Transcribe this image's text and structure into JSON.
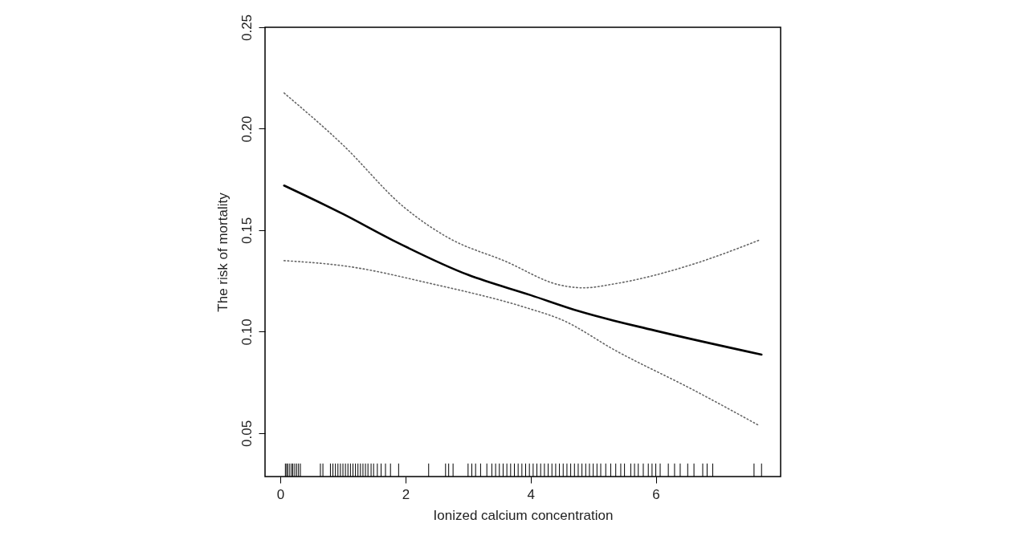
{
  "chart_data": {
    "type": "line",
    "xlabel": "Ionized calcium concentration",
    "ylabel": "The risk of mortality",
    "xlim": [
      -0.245,
      7.995
    ],
    "ylim": [
      0.0286,
      0.25
    ],
    "xticks": [
      0,
      2,
      4,
      6
    ],
    "yticks": [
      0.05,
      {
        "value": 0.1,
        "label": "0.10"
      },
      0.15,
      {
        "value": 0.2,
        "label": "0.20"
      },
      0.25
    ],
    "grid": false,
    "series": [
      {
        "color": "#000000",
        "line_style": "solid",
        "x": [
          0.06,
          1.0,
          1.8,
          3.0,
          4.0,
          4.78,
          5.98,
          7.69
        ],
        "values": [
          0.172,
          0.158,
          0.145,
          0.128,
          0.118,
          0.11,
          0.1006,
          0.0887
        ]
      },
      {
        "color": "#666666",
        "line_style": "dotted",
        "x": [
          0.06,
          1.0,
          1.97,
          2.7,
          3.58,
          4.48,
          4.84,
          5.38,
          6.58,
          7.66
        ],
        "values": [
          0.2176,
          0.192,
          0.1615,
          0.146,
          0.1349,
          0.1229,
          0.1216,
          0.1238,
          0.1331,
          0.1452
        ]
      },
      {
        "color": "#666666",
        "line_style": "dotted",
        "x": [
          0.06,
          1.07,
          2.39,
          3.94,
          4.48,
          5.38,
          6.58,
          7.66
        ],
        "values": [
          0.135,
          0.1322,
          0.1238,
          0.1117,
          0.1061,
          0.0903,
          0.0716,
          0.0536
        ]
      },
      {
        "type": "bar",
        "color": "#000000",
        "base": [
          0.0286,
          0.0286,
          0.0286,
          0.0286,
          0.0286,
          0.0286,
          0.0286,
          0.0286,
          0.0286,
          0.0286,
          0.0286,
          0.0286,
          0.0286,
          0.0286,
          0.0286,
          0.0286,
          0.0286,
          0.0286,
          0.0286,
          0.0286,
          0.0286,
          0.0286,
          0.0286,
          0.0286,
          0.0286,
          0.0286,
          0.0286,
          0.0286,
          0.0286,
          0.0286,
          0.0286,
          0.0286,
          0.0286,
          0.0286,
          0.0286,
          0.0286,
          0.0286,
          0.0286,
          0.0286,
          0.0286,
          0.0286,
          0.0286,
          0.0286,
          0.0286,
          0.0286,
          0.0286,
          0.0286,
          0.0286,
          0.0286,
          0.0286,
          0.0286,
          0.0286,
          0.0286,
          0.0286,
          0.0286,
          0.0286,
          0.0286,
          0.0286,
          0.0286,
          0.0286,
          0.0286,
          0.0286,
          0.0286,
          0.0286,
          0.0286,
          0.0286,
          0.0286,
          0.0286,
          0.0286,
          0.0286,
          0.0286,
          0.0286,
          0.0286,
          0.0286,
          0.0286,
          0.0286,
          0.0286,
          0.0286,
          0.0286,
          0.0286,
          0.0286,
          0.0286,
          0.0286,
          0.0286,
          0.0286,
          0.0286,
          0.0286,
          0.0286,
          0.0286,
          0.0286,
          0.0286,
          0.0286,
          0.0286,
          0.0286,
          0.0286,
          0.0286,
          0.0286
        ],
        "x": [
          0.08,
          0.1,
          0.12,
          0.15,
          0.18,
          0.2,
          0.23,
          0.26,
          0.29,
          0.32,
          0.64,
          0.68,
          0.8,
          0.84,
          0.88,
          0.92,
          0.96,
          1.0,
          1.04,
          1.08,
          1.12,
          1.16,
          1.2,
          1.24,
          1.28,
          1.32,
          1.36,
          1.4,
          1.45,
          1.49,
          1.55,
          1.61,
          1.68,
          1.76,
          1.89,
          2.37,
          2.64,
          2.69,
          2.76,
          3.0,
          3.06,
          3.12,
          3.2,
          3.3,
          3.38,
          3.44,
          3.5,
          3.56,
          3.62,
          3.68,
          3.74,
          3.8,
          3.86,
          3.92,
          3.98,
          4.04,
          4.1,
          4.16,
          4.22,
          4.28,
          4.34,
          4.4,
          4.46,
          4.52,
          4.58,
          4.64,
          4.7,
          4.76,
          4.82,
          4.88,
          4.94,
          5.0,
          5.06,
          5.12,
          5.2,
          5.28,
          5.36,
          5.44,
          5.5,
          5.6,
          5.66,
          5.72,
          5.8,
          5.88,
          5.94,
          6.0,
          6.07,
          6.2,
          6.3,
          6.39,
          6.51,
          6.61,
          6.75,
          6.82,
          6.91,
          7.57,
          7.69
        ],
        "values": [
          0.0064,
          0.0064,
          0.0064,
          0.0064,
          0.0064,
          0.0064,
          0.0064,
          0.0064,
          0.0064,
          0.0064,
          0.0064,
          0.0064,
          0.0064,
          0.0064,
          0.0064,
          0.0064,
          0.0064,
          0.0064,
          0.0064,
          0.0064,
          0.0064,
          0.0064,
          0.0064,
          0.0064,
          0.0064,
          0.0064,
          0.0064,
          0.0064,
          0.0064,
          0.0064,
          0.0064,
          0.0064,
          0.0064,
          0.0064,
          0.0064,
          0.0064,
          0.0064,
          0.0064,
          0.0064,
          0.0064,
          0.0064,
          0.0064,
          0.0064,
          0.0064,
          0.0064,
          0.0064,
          0.0064,
          0.0064,
          0.0064,
          0.0064,
          0.0064,
          0.0064,
          0.0064,
          0.0064,
          0.0064,
          0.0064,
          0.0064,
          0.0064,
          0.0064,
          0.0064,
          0.0064,
          0.0064,
          0.0064,
          0.0064,
          0.0064,
          0.0064,
          0.0064,
          0.0064,
          0.0064,
          0.0064,
          0.0064,
          0.0064,
          0.0064,
          0.0064,
          0.0064,
          0.0064,
          0.0064,
          0.0064,
          0.0064,
          0.0064,
          0.0064,
          0.0064,
          0.0064,
          0.0064,
          0.0064,
          0.0064,
          0.0064,
          0.0064,
          0.0064,
          0.0064,
          0.0064,
          0.0064,
          0.0064,
          0.0064,
          0.0064,
          0.0064,
          0.0064
        ]
      }
    ]
  }
}
